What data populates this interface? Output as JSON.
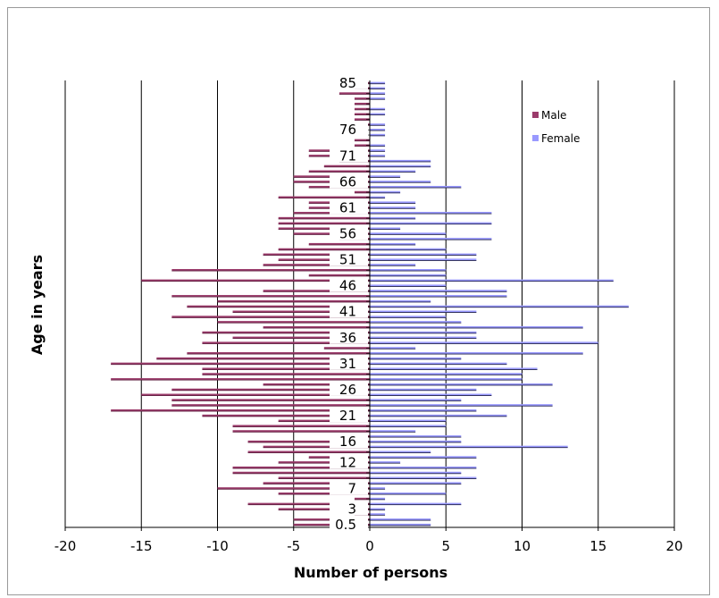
{
  "chart_data": {
    "type": "bar",
    "orientation": "horizontal",
    "title": "",
    "xlabel": "Number of persons",
    "ylabel": "Age in years",
    "xlim": [
      -20,
      20
    ],
    "x_ticks": [
      "-20",
      "-15",
      "-10",
      "-5",
      "0",
      "5",
      "10",
      "15",
      "20"
    ],
    "y_tick_labels": [
      "0.5",
      "3",
      "7",
      "12",
      "16",
      "21",
      "26",
      "31",
      "36",
      "41",
      "46",
      "51",
      "56",
      "61",
      "66",
      "71",
      "76",
      "85"
    ],
    "grid": "vertical",
    "legend_position": "top-right",
    "categories": [
      "0.5",
      "1",
      "2",
      "3",
      "4",
      "5",
      "6",
      "7",
      "8",
      "9",
      "10",
      "11",
      "12",
      "13",
      "14",
      "15",
      "16",
      "17",
      "18",
      "19",
      "20",
      "21",
      "22",
      "23",
      "24",
      "25",
      "26",
      "27",
      "28",
      "29",
      "30",
      "31",
      "32",
      "33",
      "34",
      "35",
      "36",
      "37",
      "38",
      "39",
      "40",
      "41",
      "42",
      "43",
      "44",
      "45",
      "46",
      "47",
      "48",
      "49",
      "50",
      "51",
      "52",
      "53",
      "54",
      "55",
      "56",
      "57",
      "58",
      "59",
      "60",
      "61",
      "62",
      "63",
      "64",
      "65",
      "66",
      "67",
      "68",
      "69",
      "70",
      "71",
      "72",
      "73",
      "74",
      "75",
      "76",
      "77",
      "78",
      "79",
      "80",
      "81",
      "82",
      "83",
      "84",
      "85"
    ],
    "series": [
      {
        "name": "Male",
        "color": "#9b3b6b",
        "values": [
          -5,
          -5,
          -1,
          -6,
          -8,
          -1,
          -6,
          -10,
          -7,
          -6,
          -9,
          -9,
          -6,
          -4,
          -8,
          -7,
          -8,
          -2,
          -9,
          -9,
          -6,
          -11,
          -17,
          -13,
          -13,
          -15,
          -13,
          -7,
          -17,
          -11,
          -11,
          -17,
          -14,
          -12,
          -3,
          -11,
          -9,
          -11,
          -7,
          -10,
          -13,
          -9,
          -12,
          -10,
          -13,
          -7,
          -2,
          -15,
          -4,
          -13,
          -7,
          -6,
          -7,
          -6,
          -4,
          -2,
          -5,
          -6,
          -6,
          -6,
          -5,
          -4,
          -4,
          -6,
          -1,
          -4,
          -5,
          -5,
          -4,
          -3,
          -2,
          -4,
          -4,
          -1,
          -1,
          0,
          0,
          -1,
          -1,
          -1,
          -1,
          -1,
          -1,
          -2,
          -1,
          -1
        ]
      },
      {
        "name": "Female",
        "color": "#9999ff",
        "values": [
          4,
          4,
          1,
          1,
          6,
          1,
          5,
          1,
          6,
          7,
          6,
          7,
          2,
          7,
          4,
          13,
          6,
          6,
          3,
          5,
          5,
          9,
          7,
          12,
          6,
          8,
          7,
          12,
          10,
          10,
          11,
          9,
          6,
          14,
          3,
          15,
          7,
          7,
          14,
          6,
          5,
          7,
          17,
          4,
          9,
          9,
          5,
          16,
          5,
          5,
          3,
          7,
          7,
          5,
          3,
          8,
          5,
          2,
          8,
          3,
          8,
          3,
          3,
          1,
          2,
          6,
          4,
          2,
          3,
          4,
          4,
          1,
          1,
          1,
          0,
          1,
          1,
          1,
          0,
          1,
          1,
          0,
          1,
          1,
          1,
          1
        ]
      }
    ]
  }
}
